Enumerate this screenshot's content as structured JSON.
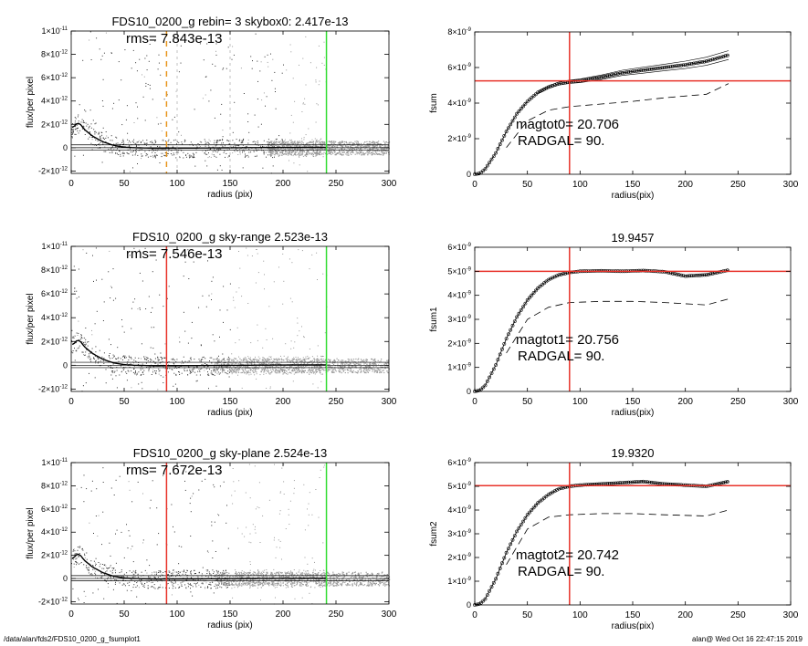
{
  "colors": {
    "red": "#e8332a",
    "green": "#33dd33",
    "orange": "#e8961e",
    "gray": "#9a9a9a",
    "black": "#000000"
  },
  "footer": {
    "left": "/data/alan/fds2/FDS10_0200_g_fsumplot1",
    "right": "alan@  Wed Oct 16 22:47:15 2019"
  },
  "chart_data": [
    {
      "type": "scatter",
      "title": "FDS10_0200_g rebin= 3    skybox0:  2.417e-13",
      "annotation": "rms= 7.843e-13",
      "xlabel": "radius (pix)",
      "ylabel": "flux/per pixel",
      "xlim": [
        0,
        300
      ],
      "ylim": [
        -2.2e-12,
        1e-11
      ],
      "xticks": [
        "0",
        "50",
        "100",
        "150",
        "200",
        "250",
        "300"
      ],
      "yticks": [
        {
          "v": -2e-12,
          "m": "-2",
          "e": "-12"
        },
        {
          "v": 0,
          "m": "0",
          "e": ""
        },
        {
          "v": 2e-12,
          "m": "2",
          "e": "-12"
        },
        {
          "v": 4e-12,
          "m": "4",
          "e": "-12"
        },
        {
          "v": 6e-12,
          "m": "6",
          "e": "-12"
        },
        {
          "v": 8e-12,
          "m": "8",
          "e": "-12"
        },
        {
          "v": 1e-11,
          "m": "1",
          "e": "-11"
        }
      ],
      "vlines": [
        {
          "x": 90,
          "color": "orange",
          "style": "dash"
        },
        {
          "x": 241,
          "color": "green",
          "style": "solid"
        },
        {
          "x": 100,
          "color": "gray",
          "style": "dash"
        },
        {
          "x": 150,
          "color": "gray",
          "style": "dash"
        }
      ],
      "hlines": [
        2.417e-13,
        -2e-13,
        0
      ],
      "gray_from": 200,
      "profile": [
        [
          2,
          1.75e-12
        ],
        [
          5,
          2.05e-12
        ],
        [
          8,
          2.1e-12
        ],
        [
          12,
          1.6e-12
        ],
        [
          20,
          1e-12
        ],
        [
          30,
          5e-13
        ],
        [
          40,
          2e-13
        ],
        [
          50,
          5e-14
        ],
        [
          60,
          0.0
        ],
        [
          80,
          -5e-14
        ],
        [
          120,
          -3e-14
        ],
        [
          160,
          0.0
        ],
        [
          200,
          2e-14
        ],
        [
          240,
          3e-14
        ]
      ]
    },
    {
      "type": "line",
      "title": "",
      "annotations": [
        "magtot0=  20.706",
        "RADGAL=     90."
      ],
      "xlabel": "radius(pix)",
      "ylabel": "fsum",
      "xlim": [
        0,
        300
      ],
      "ylim": [
        0,
        8e-09
      ],
      "xticks": [
        "0",
        "50",
        "100",
        "150",
        "200",
        "250",
        "300"
      ],
      "yticks": [
        {
          "v": 0,
          "m": "0",
          "e": ""
        },
        {
          "v": 2e-09,
          "m": "2",
          "e": "-9"
        },
        {
          "v": 4e-09,
          "m": "4",
          "e": "-9"
        },
        {
          "v": 6e-09,
          "m": "6",
          "e": "-9"
        },
        {
          "v": 8e-09,
          "m": "8",
          "e": "-9"
        }
      ],
      "vline": 90,
      "hline": 5.25e-09,
      "main": [
        [
          0,
          0
        ],
        [
          5,
          5e-11
        ],
        [
          10,
          3e-10
        ],
        [
          20,
          1.2e-09
        ],
        [
          30,
          2.4e-09
        ],
        [
          40,
          3.4e-09
        ],
        [
          50,
          4.1e-09
        ],
        [
          60,
          4.6e-09
        ],
        [
          70,
          4.9e-09
        ],
        [
          80,
          5.1e-09
        ],
        [
          90,
          5.2e-09
        ],
        [
          100,
          5.25e-09
        ],
        [
          120,
          5.45e-09
        ],
        [
          140,
          5.7e-09
        ],
        [
          160,
          5.85e-09
        ],
        [
          180,
          6e-09
        ],
        [
          200,
          6.15e-09
        ],
        [
          220,
          6.35e-09
        ],
        [
          241,
          6.7e-09
        ]
      ],
      "envelope": 2.5e-10,
      "dashed": [
        [
          30,
          1.5e-09
        ],
        [
          50,
          3e-09
        ],
        [
          70,
          3.6e-09
        ],
        [
          90,
          3.8e-09
        ],
        [
          120,
          3.95e-09
        ],
        [
          150,
          4.1e-09
        ],
        [
          180,
          4.3e-09
        ],
        [
          220,
          4.5e-09
        ],
        [
          241,
          5.1e-09
        ]
      ]
    },
    {
      "type": "scatter",
      "title": "FDS10_0200_g sky-range  2.523e-13",
      "annotation": "rms= 7.546e-13",
      "xlabel": "radius (pix)",
      "ylabel": "flux/per pixel",
      "xlim": [
        0,
        300
      ],
      "ylim": [
        -2.2e-12,
        1e-11
      ],
      "xticks": [
        "0",
        "50",
        "100",
        "150",
        "200",
        "250",
        "300"
      ],
      "yticks": [
        {
          "v": -2e-12,
          "m": "-2",
          "e": "-12"
        },
        {
          "v": 0,
          "m": "0",
          "e": ""
        },
        {
          "v": 2e-12,
          "m": "2",
          "e": "-12"
        },
        {
          "v": 4e-12,
          "m": "4",
          "e": "-12"
        },
        {
          "v": 6e-12,
          "m": "6",
          "e": "-12"
        },
        {
          "v": 8e-12,
          "m": "8",
          "e": "-12"
        },
        {
          "v": 1e-11,
          "m": "1",
          "e": "-11"
        }
      ],
      "vlines": [
        {
          "x": 90,
          "color": "red",
          "style": "solid"
        },
        {
          "x": 241,
          "color": "green",
          "style": "solid"
        }
      ],
      "hlines": [
        2.523e-13,
        -2e-13,
        0
      ],
      "gray_from": 150,
      "profile": [
        [
          2,
          1.75e-12
        ],
        [
          5,
          2.05e-12
        ],
        [
          8,
          2.1e-12
        ],
        [
          12,
          1.6e-12
        ],
        [
          20,
          1e-12
        ],
        [
          30,
          5e-13
        ],
        [
          40,
          2e-13
        ],
        [
          50,
          5e-14
        ],
        [
          60,
          0.0
        ],
        [
          80,
          -5e-14
        ],
        [
          120,
          -3e-14
        ],
        [
          160,
          0.0
        ],
        [
          200,
          2e-14
        ],
        [
          240,
          3e-14
        ]
      ]
    },
    {
      "type": "line",
      "title": "19.9457",
      "annotations": [
        "magtot1=  20.756",
        "RADGAL=     90."
      ],
      "xlabel": "radius(pix)",
      "ylabel": "fsum1",
      "xlim": [
        0,
        300
      ],
      "ylim": [
        0,
        6e-09
      ],
      "xticks": [
        "0",
        "50",
        "100",
        "150",
        "200",
        "250",
        "300"
      ],
      "yticks": [
        {
          "v": 0,
          "m": "0",
          "e": ""
        },
        {
          "v": 1e-09,
          "m": "1",
          "e": "-9"
        },
        {
          "v": 2e-09,
          "m": "2",
          "e": "-9"
        },
        {
          "v": 3e-09,
          "m": "3",
          "e": "-9"
        },
        {
          "v": 4e-09,
          "m": "4",
          "e": "-9"
        },
        {
          "v": 5e-09,
          "m": "5",
          "e": "-9"
        },
        {
          "v": 6e-09,
          "m": "6",
          "e": "-9"
        }
      ],
      "vline": 90,
      "hline": 5e-09,
      "main": [
        [
          0,
          0
        ],
        [
          5,
          5e-11
        ],
        [
          10,
          2.5e-10
        ],
        [
          20,
          1.1e-09
        ],
        [
          30,
          2.2e-09
        ],
        [
          40,
          3.1e-09
        ],
        [
          50,
          3.8e-09
        ],
        [
          60,
          4.3e-09
        ],
        [
          70,
          4.65e-09
        ],
        [
          80,
          4.85e-09
        ],
        [
          90,
          4.95e-09
        ],
        [
          100,
          5e-09
        ],
        [
          120,
          5.02e-09
        ],
        [
          140,
          5e-09
        ],
        [
          160,
          5.03e-09
        ],
        [
          180,
          4.98e-09
        ],
        [
          200,
          4.8e-09
        ],
        [
          220,
          4.85e-09
        ],
        [
          241,
          5.05e-09
        ]
      ],
      "dashed": [
        [
          30,
          1.6e-09
        ],
        [
          50,
          3e-09
        ],
        [
          70,
          3.5e-09
        ],
        [
          90,
          3.7e-09
        ],
        [
          120,
          3.75e-09
        ],
        [
          150,
          3.75e-09
        ],
        [
          180,
          3.7e-09
        ],
        [
          220,
          3.6e-09
        ],
        [
          241,
          3.85e-09
        ]
      ]
    },
    {
      "type": "scatter",
      "title": "FDS10_0200_g sky-plane  2.524e-13",
      "annotation": "rms= 7.672e-13",
      "xlabel": "radius (pix)",
      "ylabel": "flux/per pixel",
      "xlim": [
        0,
        300
      ],
      "ylim": [
        -2.2e-12,
        1e-11
      ],
      "xticks": [
        "0",
        "50",
        "100",
        "150",
        "200",
        "250",
        "300"
      ],
      "yticks": [
        {
          "v": -2e-12,
          "m": "-2",
          "e": "-12"
        },
        {
          "v": 0,
          "m": "0",
          "e": ""
        },
        {
          "v": 2e-12,
          "m": "2",
          "e": "-12"
        },
        {
          "v": 4e-12,
          "m": "4",
          "e": "-12"
        },
        {
          "v": 6e-12,
          "m": "6",
          "e": "-12"
        },
        {
          "v": 8e-12,
          "m": "8",
          "e": "-12"
        },
        {
          "v": 1e-11,
          "m": "1",
          "e": "-11"
        }
      ],
      "vlines": [
        {
          "x": 90,
          "color": "red",
          "style": "solid"
        },
        {
          "x": 241,
          "color": "green",
          "style": "solid"
        }
      ],
      "hlines": [
        2.524e-13,
        -2e-13,
        0
      ],
      "gray_from": 150,
      "profile": [
        [
          2,
          1.75e-12
        ],
        [
          5,
          2.05e-12
        ],
        [
          8,
          2.1e-12
        ],
        [
          12,
          1.6e-12
        ],
        [
          20,
          1e-12
        ],
        [
          30,
          5e-13
        ],
        [
          40,
          2e-13
        ],
        [
          50,
          5e-14
        ],
        [
          60,
          0.0
        ],
        [
          80,
          -5e-14
        ],
        [
          120,
          -3e-14
        ],
        [
          160,
          0.0
        ],
        [
          200,
          2e-14
        ],
        [
          240,
          3e-14
        ]
      ]
    },
    {
      "type": "line",
      "title": "19.9320",
      "annotations": [
        "magtot2=  20.742",
        "RADGAL=     90."
      ],
      "xlabel": "radius(pix)",
      "ylabel": "fsum2",
      "xlim": [
        0,
        300
      ],
      "ylim": [
        0,
        6e-09
      ],
      "xticks": [
        "0",
        "50",
        "100",
        "150",
        "200",
        "250",
        "300"
      ],
      "yticks": [
        {
          "v": 0,
          "m": "0",
          "e": ""
        },
        {
          "v": 1e-09,
          "m": "1",
          "e": "-9"
        },
        {
          "v": 2e-09,
          "m": "2",
          "e": "-9"
        },
        {
          "v": 3e-09,
          "m": "3",
          "e": "-9"
        },
        {
          "v": 4e-09,
          "m": "4",
          "e": "-9"
        },
        {
          "v": 5e-09,
          "m": "5",
          "e": "-9"
        },
        {
          "v": 6e-09,
          "m": "6",
          "e": "-9"
        }
      ],
      "vline": 90,
      "hline": 5.03e-09,
      "main": [
        [
          0,
          0
        ],
        [
          5,
          5e-11
        ],
        [
          10,
          2.5e-10
        ],
        [
          20,
          1.1e-09
        ],
        [
          30,
          2.2e-09
        ],
        [
          40,
          3.1e-09
        ],
        [
          50,
          3.8e-09
        ],
        [
          60,
          4.3e-09
        ],
        [
          70,
          4.65e-09
        ],
        [
          80,
          4.9e-09
        ],
        [
          90,
          5e-09
        ],
        [
          100,
          5.05e-09
        ],
        [
          120,
          5.1e-09
        ],
        [
          140,
          5.15e-09
        ],
        [
          160,
          5.2e-09
        ],
        [
          180,
          5.1e-09
        ],
        [
          200,
          5.05e-09
        ],
        [
          220,
          5e-09
        ],
        [
          241,
          5.2e-09
        ]
      ],
      "dashed": [
        [
          30,
          1.7e-09
        ],
        [
          50,
          3.2e-09
        ],
        [
          70,
          3.7e-09
        ],
        [
          90,
          3.8e-09
        ],
        [
          120,
          3.85e-09
        ],
        [
          150,
          3.85e-09
        ],
        [
          180,
          3.8e-09
        ],
        [
          220,
          3.75e-09
        ],
        [
          241,
          4e-09
        ]
      ]
    }
  ]
}
